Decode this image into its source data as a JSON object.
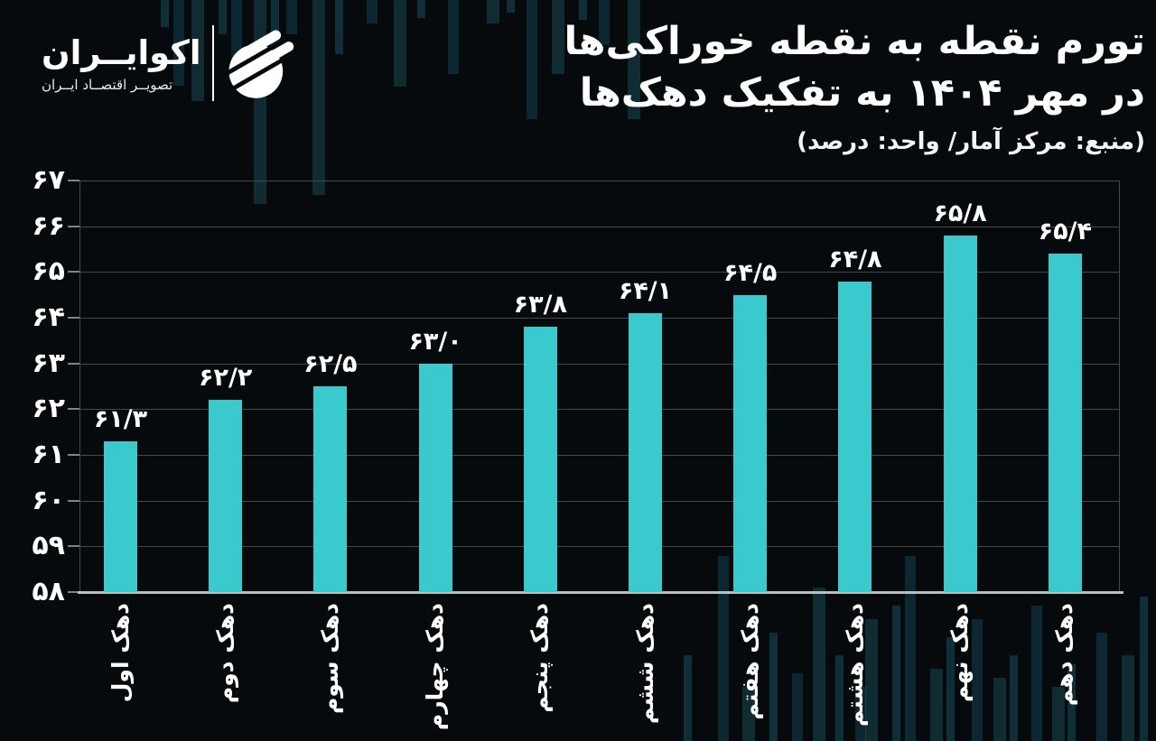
{
  "brand": {
    "name": "اکوایــران",
    "tagline": "تصویــر اقتصــاد ایــران",
    "logo_icon": "ecoiran-globe-icon"
  },
  "header": {
    "title_line1": "تورم نقطه به نقطه خوراکی‌ها",
    "title_line2": "در مهر ۱۴۰۴ به تفکیک دهک‌ها",
    "subtitle": "(منبع: مرکز آمار/ واحد: درصد)"
  },
  "colors": {
    "background": "#060a0c",
    "bar": "#3ac9cd",
    "gridline": "#43494b",
    "axis_line": "#b9bfc1",
    "text": "#ffffff",
    "deco_teal": "#1f687e"
  },
  "chart_data": {
    "type": "bar",
    "direction": "rtl",
    "title": "تورم نقطه به نقطه خوراکی‌ها در مهر ۱۴۰۴ به تفکیک دهک‌ها",
    "source_label": "(منبع: مرکز آمار/ واحد: درصد)",
    "categories": [
      "دهک اول",
      "دهک دوم",
      "دهک سوم",
      "دهک چهارم",
      "دهک پنجم",
      "دهک ششم",
      "دهک هفتم",
      "دهک هشتم",
      "دهک نهم",
      "دهک دهم"
    ],
    "values": [
      61.3,
      62.2,
      62.5,
      63.0,
      63.8,
      64.1,
      64.5,
      64.8,
      65.8,
      65.4
    ],
    "value_labels": [
      "۶۱/۳",
      "۶۲/۲",
      "۶۲/۵",
      "۶۳/۰",
      "۶۳/۸",
      "۶۴/۱",
      "۶۴/۵",
      "۶۴/۸",
      "۶۵/۸",
      "۶۵/۴"
    ],
    "y_ticks": [
      58,
      59,
      60,
      61,
      62,
      63,
      64,
      65,
      66,
      67
    ],
    "y_tick_labels": [
      "۵۸",
      "۵۹",
      "۶۰",
      "۶۱",
      "۶۲",
      "۶۳",
      "۶۴",
      "۶۵",
      "۶۶",
      "۶۷"
    ],
    "ylim": [
      58,
      67
    ],
    "grid": true,
    "legend": false,
    "bar_color": "#3ac9cd",
    "xlabel": "",
    "ylabel": ""
  }
}
